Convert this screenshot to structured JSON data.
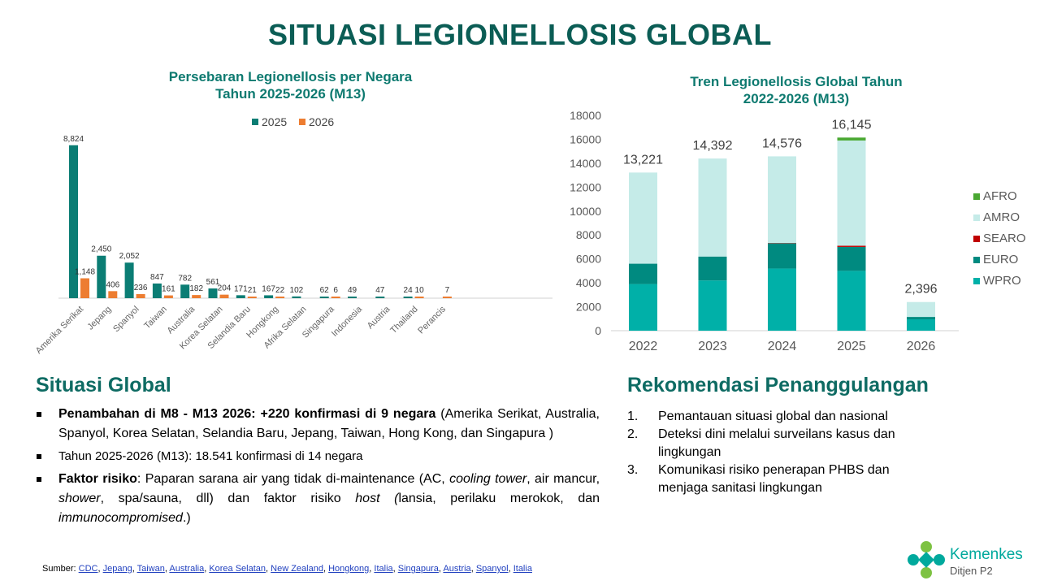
{
  "title": "SITUASI LEGIONELLOSIS GLOBAL",
  "chart_data": [
    {
      "type": "bar",
      "title": "Persebaran Legionellosis per Negara Tahun 2025-2026 (M13)",
      "title_line1": "Persebaran Legionellosis per Negara",
      "title_line2": "Tahun 2025-2026 (M13)",
      "categories": [
        "Amerika Serikat",
        "Jepang",
        "Spanyol",
        "Taiwan",
        "Australia",
        "Korea Selatan",
        "Selandia Baru",
        "Hongkong",
        "Afrika Selatan",
        "Singapura",
        "Indonesia",
        "Austria",
        "Thailand",
        "Perancis"
      ],
      "series": [
        {
          "name": "2025",
          "color": "#0b7d74",
          "values": [
            8824,
            2450,
            2052,
            847,
            782,
            561,
            171,
            167,
            102,
            62,
            49,
            47,
            24,
            null
          ]
        },
        {
          "name": "2026",
          "color": "#ed7d31",
          "values": [
            1148,
            406,
            236,
            161,
            182,
            204,
            21,
            22,
            null,
            6,
            null,
            null,
            10,
            7
          ]
        }
      ],
      "labels": {
        "2025": [
          "8,824",
          "2,450",
          "2,052",
          "847",
          "782",
          "561",
          "171",
          "167",
          "102",
          "62",
          "49",
          "47",
          "24",
          ""
        ],
        "2026": [
          "1,148",
          "406",
          "236",
          "161",
          "182",
          "204",
          "21",
          "22",
          "",
          "6",
          "",
          "",
          "10",
          "7"
        ]
      },
      "legend": "top",
      "ylim": [
        0,
        9000
      ]
    },
    {
      "type": "bar",
      "stacked": true,
      "title": "Tren Legionellosis Global Tahun 2022-2026 (M13)",
      "title_line1": "Tren Legionellosis Global Tahun",
      "title_line2": "2022-2026 (M13)",
      "categories": [
        "2022",
        "2023",
        "2024",
        "2025",
        "2026"
      ],
      "series": [
        {
          "name": "WPRO",
          "color": "#00b0a8",
          "values": [
            3900,
            4200,
            5200,
            5000,
            950
          ]
        },
        {
          "name": "EURO",
          "color": "#008a80",
          "values": [
            1700,
            2000,
            2100,
            2000,
            200
          ]
        },
        {
          "name": "SEARO",
          "color": "#c00000",
          "values": [
            0,
            0,
            30,
            100,
            0
          ]
        },
        {
          "name": "AMRO",
          "color": "#c5ebe8",
          "values": [
            7621,
            8192,
            7246,
            8800,
            1246
          ]
        },
        {
          "name": "AFRO",
          "color": "#4aa832",
          "values": [
            0,
            0,
            0,
            245,
            0
          ]
        }
      ],
      "totals": [
        "13,221",
        "14,392",
        "14,576",
        "16,145",
        "2,396"
      ],
      "yticks": [
        "0",
        "2000",
        "4000",
        "6000",
        "8000",
        "10000",
        "12000",
        "14000",
        "16000",
        "18000"
      ],
      "ylim": [
        0,
        18000
      ],
      "legend": "right"
    }
  ],
  "situasi": {
    "heading": "Situasi Global",
    "b1_bold": "Penambahan di M8 - M13 2026: +220 konfirmasi di 9 negara",
    "b1_rest": " (Amerika Serikat, Australia, Spanyol, Korea Selatan, Selandia Baru, Jepang, Taiwan, Hong Kong, dan Singapura )",
    "b2": "Tahun 2025-2026 (M13): 18.541 konfirmasi di 14 negara",
    "b3_bold": "Faktor risiko",
    "b3_a": ": Paparan sarana air yang tidak di-maintenance (AC, ",
    "b3_i1": "cooling tower",
    "b3_b": ", air mancur, ",
    "b3_i2": "shower",
    "b3_c": ", spa/sauna, dll) dan faktor risiko ",
    "b3_i3": "host (",
    "b3_d": "lansia, perilaku merokok, dan ",
    "b3_i4": "immunocompromised",
    "b3_e": ".)"
  },
  "rekomendasi": {
    "heading": "Rekomendasi Penanggulangan",
    "items": [
      {
        "n": "1.",
        "t": "Pemantauan situasi global dan nasional"
      },
      {
        "n": "2.",
        "t": "Deteksi dini melalui surveilans kasus dan lingkungan"
      },
      {
        "n": "3.",
        "t": "Komunikasi risiko penerapan PHBS dan menjaga sanitasi lingkungan"
      }
    ]
  },
  "source": {
    "label": "Sumber: ",
    "links": [
      "CDC",
      "Jepang",
      "Taiwan",
      "Australia",
      "Korea Selatan",
      "New Zealand",
      "Hongkong",
      "Italia",
      "Singapura",
      "Austria",
      "Spanyol",
      "Italia"
    ]
  },
  "logo": {
    "name": "Kemenkes",
    "sub": "Ditjen P2"
  }
}
